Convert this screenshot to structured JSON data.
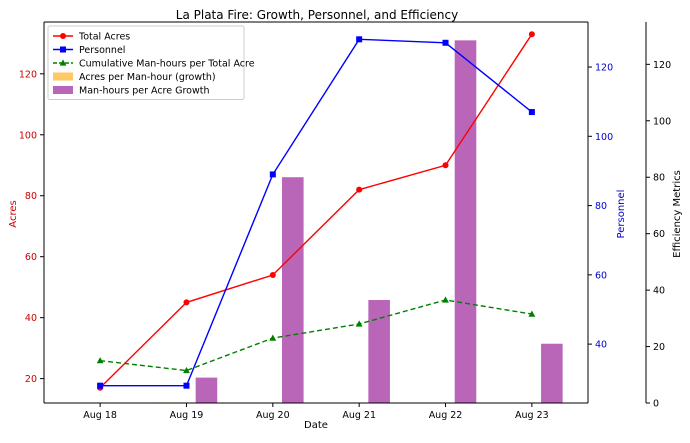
{
  "chart_data": {
    "type": "line",
    "title": "La Plata Fire: Growth, Personnel, and Efficiency",
    "xlabel": "Date",
    "categories": [
      "Aug 18",
      "Aug 19",
      "Aug 20",
      "Aug 21",
      "Aug 22",
      "Aug 23"
    ],
    "axes": {
      "left": {
        "label": "Acres",
        "color": "#cc0000",
        "ylim": [
          12,
          137
        ],
        "ticks": [
          20,
          40,
          60,
          80,
          100,
          120
        ]
      },
      "right": {
        "label": "Personnel",
        "color": "#0000cc",
        "ylim": [
          23,
          133
        ],
        "ticks": [
          40,
          60,
          80,
          100,
          120
        ]
      },
      "outer": {
        "label": "Efficiency Metrics",
        "color": "#000000",
        "ylim": [
          0,
          135
        ],
        "ticks": [
          0,
          20,
          40,
          60,
          80,
          100,
          120
        ]
      }
    },
    "series": [
      {
        "name": "Total Acres",
        "axis": "left",
        "kind": "line",
        "color": "#ff0000",
        "marker": "circle",
        "dash": "solid",
        "values": [
          17,
          45,
          54,
          82,
          90,
          133
        ]
      },
      {
        "name": "Personnel",
        "axis": "right",
        "kind": "line",
        "color": "#0000ff",
        "marker": "square",
        "dash": "solid",
        "values": [
          28,
          28,
          89,
          128,
          127,
          107
        ]
      },
      {
        "name": "Cumulative Man-hours per Total Acre",
        "axis": "outer",
        "kind": "line",
        "color": "#008000",
        "marker": "triangle",
        "dash": "dashed",
        "values": [
          15,
          11.5,
          23,
          28,
          36.5,
          31.5
        ]
      },
      {
        "name": "Acres per Man-hour (growth)",
        "axis": "outer",
        "kind": "bar",
        "color": "#ffa500",
        "offset": -0.125,
        "values": [
          0,
          0.2,
          0,
          0,
          0,
          0
        ]
      },
      {
        "name": "Man-hours per Acre Growth",
        "axis": "outer",
        "kind": "bar",
        "color": "#8b008b",
        "offset": 0.125,
        "values": [
          0,
          9,
          80,
          36.5,
          128.5,
          21
        ]
      }
    ],
    "legend_position": "top-left",
    "grid": false
  }
}
